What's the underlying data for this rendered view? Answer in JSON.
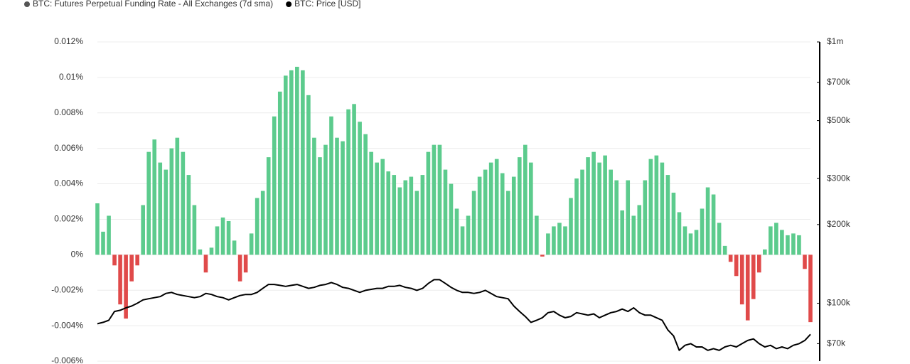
{
  "chart_data": {
    "type": "bar-line",
    "series": [
      {
        "name": "BTC: Futures Perpetual Funding Rate - All Exchanges (7d sma)",
        "type": "bar",
        "color": "#5ccb8d",
        "negative_color": "#e04a4a",
        "legend_color": "#555555",
        "values": [
          0.0029,
          0.0013,
          0.0022,
          -0.0006,
          -0.0028,
          -0.0036,
          -0.0015,
          -0.0006,
          0.0028,
          0.0058,
          0.0065,
          0.0052,
          0.0048,
          0.006,
          0.0066,
          0.0058,
          0.0045,
          0.0028,
          0.0003,
          -0.001,
          0.0004,
          0.0016,
          0.0021,
          0.0019,
          0.0008,
          -0.0015,
          -0.001,
          0.0012,
          0.0032,
          0.0036,
          0.0055,
          0.0078,
          0.0092,
          0.0101,
          0.0104,
          0.0106,
          0.0104,
          0.009,
          0.0066,
          0.0055,
          0.0062,
          0.0078,
          0.0066,
          0.0064,
          0.0082,
          0.0085,
          0.0075,
          0.0068,
          0.0058,
          0.0052,
          0.0054,
          0.0047,
          0.0045,
          0.0038,
          0.0042,
          0.0044,
          0.0036,
          0.0045,
          0.0058,
          0.0062,
          0.0062,
          0.0048,
          0.004,
          0.0026,
          0.0016,
          0.0022,
          0.0036,
          0.0044,
          0.0048,
          0.0052,
          0.0054,
          0.0046,
          0.0036,
          0.0044,
          0.0055,
          0.0062,
          0.0052,
          0.0022,
          -0.0001,
          0.0012,
          0.0016,
          0.0018,
          0.0016,
          0.0032,
          0.0043,
          0.0048,
          0.0055,
          0.0058,
          0.0052,
          0.0056,
          0.0048,
          0.0042,
          0.0025,
          0.0042,
          0.0022,
          0.0028,
          0.0042,
          0.0054,
          0.0056,
          0.0052,
          0.0045,
          0.0035,
          0.0024,
          0.0016,
          0.0012,
          0.0014,
          0.0026,
          0.0038,
          0.0034,
          0.0018,
          0.0005,
          -0.0004,
          -0.0012,
          -0.0028,
          -0.0037,
          -0.0025,
          -0.001,
          0.0003,
          0.0016,
          0.0018,
          0.0014,
          0.0011,
          0.0012,
          0.0011,
          -0.0008,
          -0.0038
        ]
      },
      {
        "name": "BTC: Price [USD]",
        "type": "line",
        "axis": "y2",
        "color": "#000000",
        "values": [
          83400,
          84500,
          86000,
          93000,
          94000,
          96000,
          97500,
          100000,
          103000,
          104000,
          105000,
          106000,
          109000,
          110000,
          108000,
          107000,
          106000,
          105000,
          106000,
          109000,
          108000,
          106000,
          105000,
          103000,
          105000,
          107000,
          108000,
          108000,
          110000,
          114000,
          118000,
          118000,
          117000,
          116000,
          117000,
          118000,
          116000,
          114000,
          115000,
          117000,
          118000,
          120000,
          118000,
          115000,
          114000,
          112000,
          110000,
          112000,
          113000,
          114000,
          114000,
          116000,
          116000,
          117000,
          115000,
          114000,
          112000,
          114000,
          119000,
          123000,
          123000,
          119000,
          115000,
          112000,
          110000,
          110000,
          109000,
          110000,
          112000,
          109000,
          106000,
          105000,
          104000,
          97500,
          93000,
          89000,
          84500,
          86000,
          88000,
          92000,
          93000,
          90000,
          88000,
          89000,
          92000,
          91000,
          90000,
          91000,
          88000,
          90000,
          92000,
          93000,
          95000,
          93000,
          96000,
          92000,
          90000,
          90000,
          88000,
          86000,
          79000,
          75000,
          66000,
          69000,
          70000,
          68000,
          68000,
          66000,
          67000,
          66000,
          68000,
          69000,
          68000,
          70000,
          72000,
          73000,
          70000,
          68000,
          69000,
          67000,
          68000,
          67000,
          69000,
          70000,
          72000,
          76000
        ]
      }
    ],
    "ylim": [
      -0.006,
      0.012
    ],
    "yticks": [
      {
        "value": 0.012,
        "label": "0.012%"
      },
      {
        "value": 0.01,
        "label": "0.01%"
      },
      {
        "value": 0.008,
        "label": "0.008%"
      },
      {
        "value": 0.006,
        "label": "0.006%"
      },
      {
        "value": 0.004,
        "label": "0.004%"
      },
      {
        "value": 0.002,
        "label": "0.002%"
      },
      {
        "value": 0,
        "label": "0%"
      },
      {
        "value": -0.002,
        "label": "-0.002%"
      },
      {
        "value": -0.004,
        "label": "-0.004%"
      },
      {
        "value": -0.006,
        "label": "-0.006%"
      }
    ],
    "y2lim": [
      60000,
      1000000
    ],
    "y2_log": true,
    "y2ticks": [
      {
        "value": 1000000,
        "label": "$1m"
      },
      {
        "value": 700000,
        "label": "$700k"
      },
      {
        "value": 500000,
        "label": "$500k"
      },
      {
        "value": 300000,
        "label": "$300k"
      },
      {
        "value": 200000,
        "label": "$200k"
      },
      {
        "value": 100000,
        "label": "$100k"
      },
      {
        "value": 70000,
        "label": "$70k"
      }
    ],
    "grid": true
  }
}
